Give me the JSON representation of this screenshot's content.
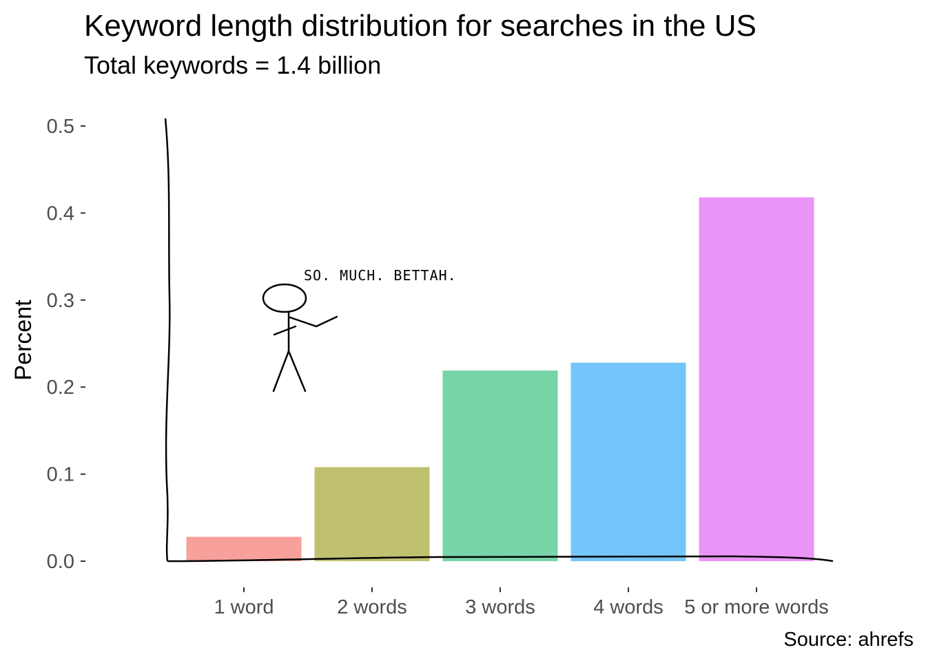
{
  "chart_data": {
    "type": "bar",
    "title": "Keyword length distribution for searches in the US",
    "subtitle": "Total keywords = 1.4 billion",
    "xlabel": "",
    "ylabel": "Percent",
    "caption": "Source: ahrefs",
    "annotation": "SO. MUCH. BETTAH.",
    "categories": [
      "1 word",
      "2 words",
      "3 words",
      "4 words",
      "5 or more words"
    ],
    "values": [
      0.028,
      0.108,
      0.219,
      0.228,
      0.418
    ],
    "colors": [
      "#f8a09b",
      "#c0c16e",
      "#76d4a7",
      "#74c5fa",
      "#e995f7"
    ],
    "ylim": [
      0,
      0.5
    ],
    "yticks": [
      "0.0",
      "0.1",
      "0.2",
      "0.3",
      "0.4",
      "0.5"
    ],
    "grid": false,
    "legend": "none",
    "style": "xkcd"
  }
}
